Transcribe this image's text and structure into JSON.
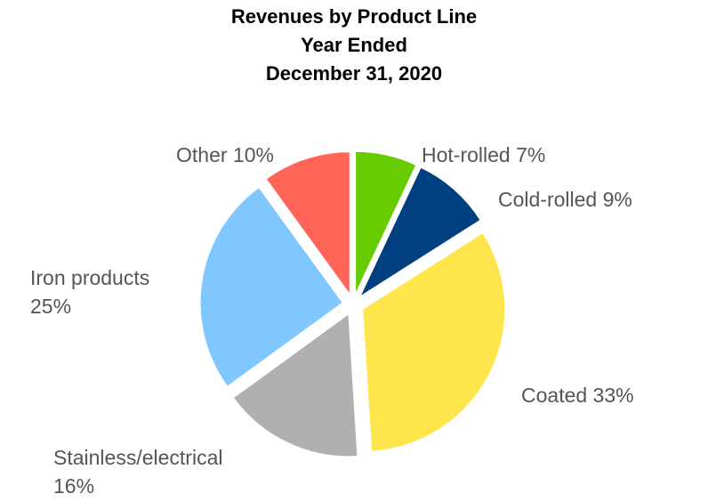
{
  "chart_data": {
    "type": "pie",
    "title_lines": [
      "Revenues by Product Line",
      "Year Ended",
      "December 31, 2020"
    ],
    "slices": [
      {
        "name": "Hot-rolled",
        "value": 7,
        "color": "#66CC00",
        "label_lines": [
          "Hot-rolled 7%"
        ]
      },
      {
        "name": "Cold-rolled",
        "value": 9,
        "color": "#004080",
        "label_lines": [
          "Cold-rolled 9%"
        ]
      },
      {
        "name": "Coated",
        "value": 33,
        "color": "#FFE54C",
        "label_lines": [
          "Coated 33%"
        ]
      },
      {
        "name": "Stainless/electrical",
        "value": 16,
        "color": "#B0B0B0",
        "label_lines": [
          "Stainless/electrical",
          "16%"
        ]
      },
      {
        "name": "Iron products",
        "value": 25,
        "color": "#80C6FF",
        "label_lines": [
          "Iron products",
          "25%"
        ]
      },
      {
        "name": "Other",
        "value": 10,
        "color": "#FF6457",
        "label_lines": [
          "Other 10%"
        ]
      }
    ]
  }
}
